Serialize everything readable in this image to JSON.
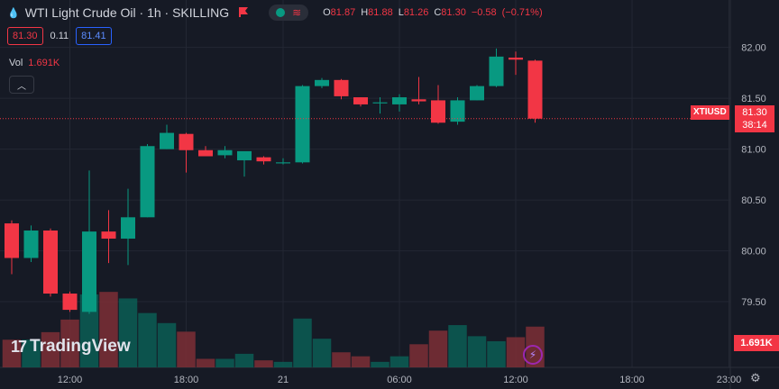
{
  "header": {
    "title": "WTI Light Crude Oil · 1h · SKILLING",
    "open_label": "O",
    "open": "81.87",
    "high_label": "H",
    "high": "81.88",
    "low_label": "L",
    "low": "81.26",
    "close_label": "C",
    "close": "81.30",
    "change": "−0.58",
    "change_pct": "(−0.71%)"
  },
  "trade": {
    "sell": "81.30",
    "spread": "0.11",
    "buy": "81.41"
  },
  "volume": {
    "label": "Vol",
    "value": "1.691K"
  },
  "logo_text": "TradingView",
  "price_tag": {
    "symbol": "XTIUSD",
    "price": "81.30",
    "countdown": "38:14"
  },
  "volume_tag": "1.691K",
  "colors": {
    "up": "#089981",
    "down": "#f23645",
    "background": "#161a25",
    "grid": "#232733"
  },
  "chart_data": {
    "type": "candlestick",
    "y_ticks": [
      "82.00",
      "81.50",
      "81.00",
      "80.50",
      "80.00",
      "79.50"
    ],
    "ylim": [
      79.35,
      82.13
    ],
    "x_ticks": [
      {
        "label": "12:00",
        "index": 3
      },
      {
        "label": "18:00",
        "index": 9
      },
      {
        "label": "21",
        "index": 14
      },
      {
        "label": "06:00",
        "index": 20
      },
      {
        "label": "12:00",
        "index": 26
      },
      {
        "label": "18:00",
        "index": 32
      },
      {
        "label": "23:00",
        "index": 37
      }
    ],
    "candles": [
      {
        "o": 80.27,
        "h": 80.3,
        "l": 79.77,
        "c": 79.93,
        "v": 0.55
      },
      {
        "o": 79.93,
        "h": 80.25,
        "l": 79.89,
        "c": 80.2,
        "v": 0.55
      },
      {
        "o": 80.2,
        "h": 80.22,
        "l": 79.55,
        "c": 79.58,
        "v": 0.7
      },
      {
        "o": 79.58,
        "h": 79.6,
        "l": 79.4,
        "c": 79.42,
        "v": 0.95
      },
      {
        "o": 79.4,
        "h": 80.79,
        "l": 79.38,
        "c": 80.19,
        "v": 1.45
      },
      {
        "o": 80.19,
        "h": 80.4,
        "l": 79.88,
        "c": 80.12,
        "v": 1.5
      },
      {
        "o": 80.12,
        "h": 80.61,
        "l": 79.86,
        "c": 80.33,
        "v": 1.37
      },
      {
        "o": 80.33,
        "h": 81.05,
        "l": 80.33,
        "c": 81.03,
        "v": 1.08
      },
      {
        "o": 81.0,
        "h": 81.24,
        "l": 81.0,
        "c": 81.16,
        "v": 0.88
      },
      {
        "o": 81.15,
        "h": 81.16,
        "l": 80.77,
        "c": 80.99,
        "v": 0.71
      },
      {
        "o": 80.99,
        "h": 81.03,
        "l": 80.93,
        "c": 80.93,
        "v": 0.17
      },
      {
        "o": 80.94,
        "h": 81.03,
        "l": 80.91,
        "c": 80.99,
        "v": 0.17
      },
      {
        "o": 80.89,
        "h": 80.96,
        "l": 80.73,
        "c": 80.98,
        "v": 0.27
      },
      {
        "o": 80.92,
        "h": 80.93,
        "l": 80.85,
        "c": 80.88,
        "v": 0.14
      },
      {
        "o": 80.86,
        "h": 80.91,
        "l": 80.85,
        "c": 80.87,
        "v": 0.11
      },
      {
        "o": 80.87,
        "h": 81.63,
        "l": 80.86,
        "c": 81.62,
        "v": 0.97
      },
      {
        "o": 81.62,
        "h": 81.7,
        "l": 81.6,
        "c": 81.68,
        "v": 0.57
      },
      {
        "o": 81.68,
        "h": 81.69,
        "l": 81.49,
        "c": 81.52,
        "v": 0.3
      },
      {
        "o": 81.51,
        "h": 81.51,
        "l": 81.42,
        "c": 81.44,
        "v": 0.22
      },
      {
        "o": 81.45,
        "h": 81.51,
        "l": 81.35,
        "c": 81.46,
        "v": 0.11
      },
      {
        "o": 81.44,
        "h": 81.54,
        "l": 81.37,
        "c": 81.51,
        "v": 0.22
      },
      {
        "o": 81.49,
        "h": 81.71,
        "l": 81.44,
        "c": 81.47,
        "v": 0.46
      },
      {
        "o": 81.48,
        "h": 81.63,
        "l": 81.25,
        "c": 81.26,
        "v": 0.73
      },
      {
        "o": 81.27,
        "h": 81.51,
        "l": 81.24,
        "c": 81.48,
        "v": 0.84
      },
      {
        "o": 81.48,
        "h": 81.63,
        "l": 81.48,
        "c": 81.62,
        "v": 0.62
      },
      {
        "o": 81.62,
        "h": 81.99,
        "l": 81.61,
        "c": 81.91,
        "v": 0.52
      },
      {
        "o": 81.9,
        "h": 81.96,
        "l": 81.73,
        "c": 81.88,
        "v": 0.6
      },
      {
        "o": 81.87,
        "h": 81.88,
        "l": 81.26,
        "c": 81.3,
        "v": 0.81
      }
    ],
    "volume_scale_max": 1.7,
    "current_price": 81.3
  }
}
